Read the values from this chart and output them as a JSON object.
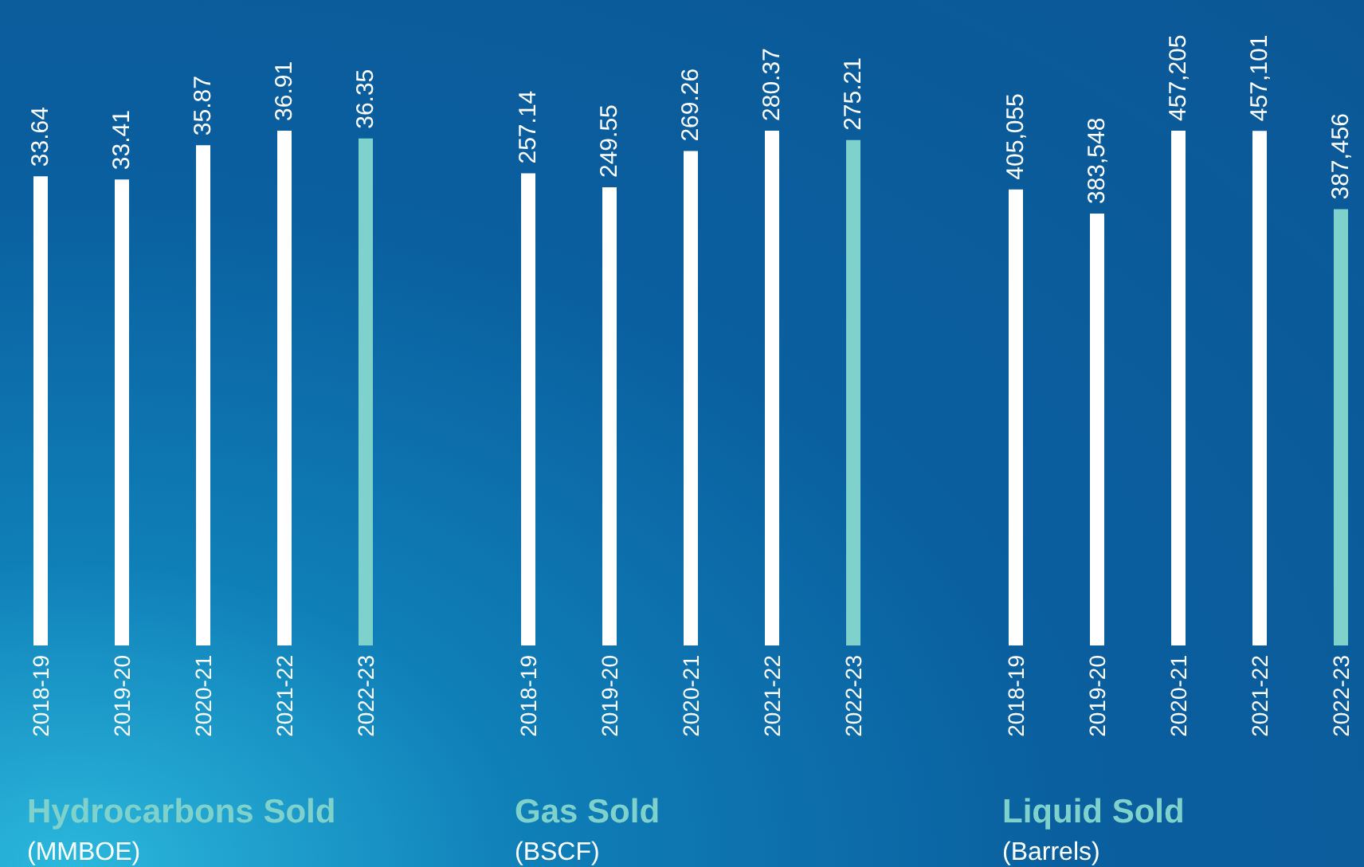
{
  "chart_data": [
    {
      "type": "bar",
      "title": "Hydrocarbons Sold",
      "subtitle": "(MMBOE)",
      "categories": [
        "2018-19",
        "2019-20",
        "2020-21",
        "2021-22",
        "2022-23"
      ],
      "values": [
        33.64,
        33.41,
        35.87,
        36.91,
        36.35
      ],
      "colors": [
        "#ffffff",
        "#ffffff",
        "#ffffff",
        "#ffffff",
        "#7fd1cc"
      ],
      "data_labels": true,
      "tick_labels": "x"
    },
    {
      "type": "bar",
      "title": "Gas Sold",
      "subtitle": "(BSCF)",
      "categories": [
        "2018-19",
        "2019-20",
        "2020-21",
        "2021-22",
        "2022-23"
      ],
      "values": [
        257.14,
        249.55,
        269.26,
        280.37,
        275.21
      ],
      "colors": [
        "#ffffff",
        "#ffffff",
        "#ffffff",
        "#ffffff",
        "#7fd1cc"
      ],
      "data_labels": true,
      "tick_labels": "x"
    },
    {
      "type": "bar",
      "title": "Liquid Sold",
      "subtitle": "(Barrels)",
      "categories": [
        "2018-19",
        "2019-20",
        "2020-21",
        "2021-22",
        "2022-23"
      ],
      "values": [
        405055,
        383548,
        457205,
        457101,
        387456
      ],
      "value_labels": [
        "405,055",
        "383,548",
        "457,205",
        "457,101",
        "387,456"
      ],
      "colors": [
        "#ffffff",
        "#ffffff",
        "#ffffff",
        "#ffffff",
        "#7fd1cc"
      ],
      "tick_labels": "x"
    }
  ]
}
